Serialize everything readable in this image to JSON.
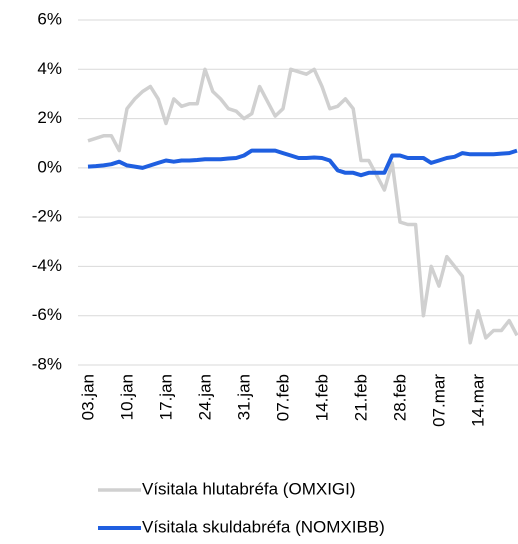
{
  "chart_data": {
    "type": "line",
    "categories": [
      "03.jan",
      null,
      null,
      null,
      null,
      "10.jan",
      null,
      null,
      null,
      null,
      "17.jan",
      null,
      null,
      null,
      null,
      "24.jan",
      null,
      null,
      null,
      null,
      "31.jan",
      null,
      null,
      null,
      null,
      "07.feb",
      null,
      null,
      null,
      null,
      "14.feb",
      null,
      null,
      null,
      null,
      "21.feb",
      null,
      null,
      null,
      null,
      "28.feb",
      null,
      null,
      null,
      null,
      "07.mar",
      null,
      null,
      null,
      null,
      "14.mar",
      null,
      null,
      null,
      null,
      null
    ],
    "series": [
      {
        "name": "Vísitala hlutabréfa (OMXIGI)",
        "color": "#d0d0d0",
        "values": [
          1.1,
          1.2,
          1.3,
          1.3,
          0.7,
          2.4,
          2.8,
          3.1,
          3.3,
          2.8,
          1.8,
          2.8,
          2.5,
          2.6,
          2.6,
          4.0,
          3.1,
          2.8,
          2.4,
          2.3,
          2.0,
          2.2,
          3.3,
          2.7,
          2.1,
          2.4,
          4.0,
          3.9,
          3.8,
          4.0,
          3.3,
          2.4,
          2.5,
          2.8,
          2.4,
          0.3,
          0.3,
          -0.3,
          -0.9,
          0.2,
          -2.2,
          -2.3,
          -2.3,
          -6.0,
          -4.0,
          -4.8,
          -3.6,
          -4.0,
          -4.4,
          -7.1,
          -5.8,
          -6.9,
          -6.6,
          -6.6,
          -6.2,
          -6.8
        ]
      },
      {
        "name": "Vísitala skuldabréfa (NOMXIBB)",
        "color": "#1f5fe0",
        "values": [
          0.05,
          0.07,
          0.1,
          0.15,
          0.25,
          0.1,
          0.05,
          0.0,
          0.1,
          0.2,
          0.3,
          0.25,
          0.3,
          0.3,
          0.32,
          0.35,
          0.35,
          0.35,
          0.38,
          0.4,
          0.5,
          0.7,
          0.7,
          0.7,
          0.7,
          0.6,
          0.5,
          0.4,
          0.4,
          0.42,
          0.4,
          0.3,
          -0.1,
          -0.2,
          -0.2,
          -0.3,
          -0.2,
          -0.2,
          -0.2,
          0.5,
          0.5,
          0.4,
          0.4,
          0.4,
          0.2,
          0.3,
          0.4,
          0.45,
          0.6,
          0.55,
          0.55,
          0.55,
          0.55,
          0.58,
          0.6,
          0.7
        ]
      }
    ],
    "ylim": [
      -8,
      6
    ],
    "yticks": [
      {
        "value": -8,
        "label": "-8%"
      },
      {
        "value": -6,
        "label": "-6%"
      },
      {
        "value": -4,
        "label": "-4%"
      },
      {
        "value": -2,
        "label": "-2%"
      },
      {
        "value": 0,
        "label": "0%"
      },
      {
        "value": 2,
        "label": "2%"
      },
      {
        "value": 4,
        "label": "4%"
      },
      {
        "value": 6,
        "label": "6%"
      }
    ],
    "grid": true
  }
}
